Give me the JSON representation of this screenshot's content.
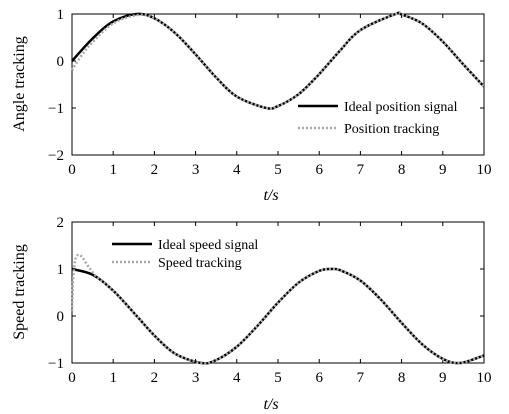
{
  "chart_data": [
    {
      "type": "line",
      "ylabel": "Angle tracking",
      "xlabel": "t/s",
      "xlim": [
        0,
        10
      ],
      "ylim": [
        -2,
        1
      ],
      "xticks": [
        "0",
        "1",
        "2",
        "3",
        "4",
        "5",
        "6",
        "7",
        "8",
        "9",
        "10"
      ],
      "yticks": [
        "1",
        "0",
        "−1",
        "−2"
      ],
      "grid": false,
      "legend_position": "lower-right",
      "series": [
        {
          "name": "Ideal position signal",
          "style": "solid",
          "color": "#000000",
          "x": [
            0,
            0.5,
            1,
            1.5708,
            2,
            2.5,
            3,
            3.5,
            4,
            4.7124,
            5,
            5.5,
            6,
            6.5,
            7,
            7.854,
            8,
            8.5,
            9,
            9.5,
            10
          ],
          "y": [
            0,
            0.479,
            0.841,
            1,
            0.909,
            0.598,
            0.141,
            -0.351,
            -0.757,
            -1,
            -0.959,
            -0.706,
            -0.279,
            0.215,
            0.657,
            1,
            0.989,
            0.798,
            0.412,
            -0.075,
            -0.544
          ]
        },
        {
          "name": "Position tracking",
          "style": "dotted",
          "color": "#aaaaaa",
          "x": [
            0,
            0.1,
            0.3,
            0.5,
            1,
            1.6,
            2,
            2.5,
            3,
            3.5,
            4,
            4.7124,
            5,
            5.5,
            6,
            6.5,
            7,
            7.854,
            8,
            8.5,
            9,
            9.5,
            10
          ],
          "y": [
            -0.2,
            -0.05,
            0.2,
            0.4,
            0.8,
            0.98,
            0.91,
            0.598,
            0.141,
            -0.351,
            -0.757,
            -1,
            -0.959,
            -0.706,
            -0.279,
            0.215,
            0.657,
            1,
            0.989,
            0.798,
            0.412,
            -0.075,
            -0.544
          ]
        }
      ]
    },
    {
      "type": "line",
      "ylabel": "Speed tracking",
      "xlabel": "t/s",
      "xlim": [
        0,
        10
      ],
      "ylim": [
        -1,
        2
      ],
      "xticks": [
        "0",
        "1",
        "2",
        "3",
        "4",
        "5",
        "6",
        "7",
        "8",
        "9",
        "10"
      ],
      "yticks": [
        "2",
        "1",
        "0",
        "−1"
      ],
      "grid": false,
      "legend_position": "top-left",
      "series": [
        {
          "name": "Ideal speed signal",
          "style": "solid",
          "color": "#000000",
          "x": [
            0,
            0.5,
            1,
            1.5708,
            2,
            2.5,
            3.1416,
            3.5,
            4,
            4.5,
            5,
            5.5,
            6,
            6.2832,
            6.5,
            7,
            7.5,
            8,
            8.5,
            9,
            9.4248,
            10
          ],
          "y": [
            1,
            0.878,
            0.54,
            0,
            -0.416,
            -0.801,
            -1,
            -0.936,
            -0.654,
            -0.211,
            0.284,
            0.709,
            0.96,
            1,
            0.977,
            0.754,
            0.347,
            -0.146,
            -0.602,
            -0.911,
            -1,
            -0.839
          ]
        },
        {
          "name": "Speed tracking",
          "style": "dotted",
          "color": "#aaaaaa",
          "x": [
            0,
            0.03,
            0.08,
            0.15,
            0.25,
            0.4,
            0.6,
            0.8,
            1,
            1.5708,
            2,
            2.5,
            3.1416,
            3.5,
            4,
            4.5,
            5,
            5.5,
            6,
            6.2832,
            6.5,
            7,
            7.5,
            8,
            8.5,
            9,
            9.4248,
            10
          ],
          "y": [
            0.1,
            0.8,
            1.2,
            1.3,
            1.25,
            1.05,
            0.83,
            0.69,
            0.54,
            0,
            -0.416,
            -0.801,
            -1,
            -0.936,
            -0.654,
            -0.211,
            0.284,
            0.709,
            0.96,
            1,
            0.977,
            0.754,
            0.347,
            -0.146,
            -0.602,
            -0.911,
            -1,
            -0.839
          ]
        }
      ]
    }
  ]
}
